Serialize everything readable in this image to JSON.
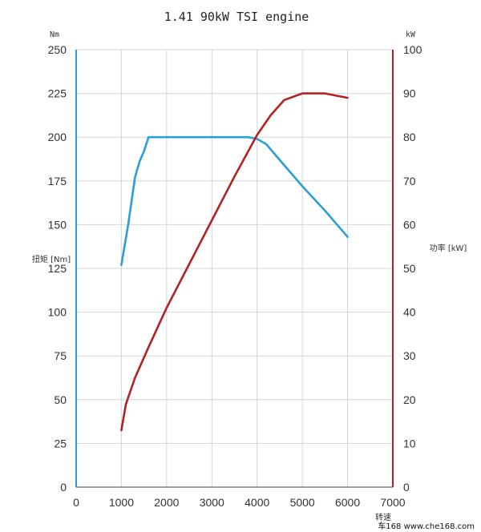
{
  "chart_data": {
    "type": "line",
    "title": "1.41 90kW TSI engine",
    "left_unit": "Nm",
    "right_unit": "kW",
    "ylabel_left": "扭矩 [Nm]",
    "ylabel_right": "功率 [kW]",
    "xlabel": "转速",
    "xlim": [
      0,
      7000
    ],
    "ylim_left": [
      0,
      250
    ],
    "ylim_right": [
      0,
      100
    ],
    "x_ticks": [
      "0",
      "1000",
      "2000",
      "3000",
      "4000",
      "5000",
      "6000",
      "7000"
    ],
    "y_left_ticks": [
      "0",
      "25",
      "50",
      "75",
      "100",
      "125",
      "150",
      "175",
      "200",
      "225",
      "250"
    ],
    "y_right_ticks": [
      "0",
      "10",
      "20",
      "30",
      "40",
      "50",
      "60",
      "70",
      "80",
      "90",
      "100"
    ],
    "grid": true,
    "series": [
      {
        "axis": "left",
        "color": "#2a9fd6",
        "points": [
          [
            1000,
            127
          ],
          [
            1150,
            150
          ],
          [
            1300,
            177
          ],
          [
            1400,
            186
          ],
          [
            1500,
            192
          ],
          [
            1600,
            200
          ],
          [
            2000,
            200
          ],
          [
            3000,
            200
          ],
          [
            3800,
            200
          ],
          [
            4000,
            199
          ],
          [
            4200,
            196
          ],
          [
            4500,
            187
          ],
          [
            5000,
            172
          ],
          [
            5500,
            158
          ],
          [
            6000,
            143
          ]
        ]
      },
      {
        "axis": "right",
        "color": "#b22222",
        "points": [
          [
            1000,
            13
          ],
          [
            1100,
            19
          ],
          [
            1300,
            25
          ],
          [
            1600,
            32
          ],
          [
            2000,
            41
          ],
          [
            2500,
            51
          ],
          [
            3000,
            61
          ],
          [
            3500,
            71
          ],
          [
            4000,
            80.5
          ],
          [
            4300,
            85
          ],
          [
            4600,
            88.5
          ],
          [
            5000,
            90
          ],
          [
            5500,
            90
          ],
          [
            6000,
            89
          ]
        ]
      }
    ]
  },
  "watermark": "车168 www.che168.com"
}
